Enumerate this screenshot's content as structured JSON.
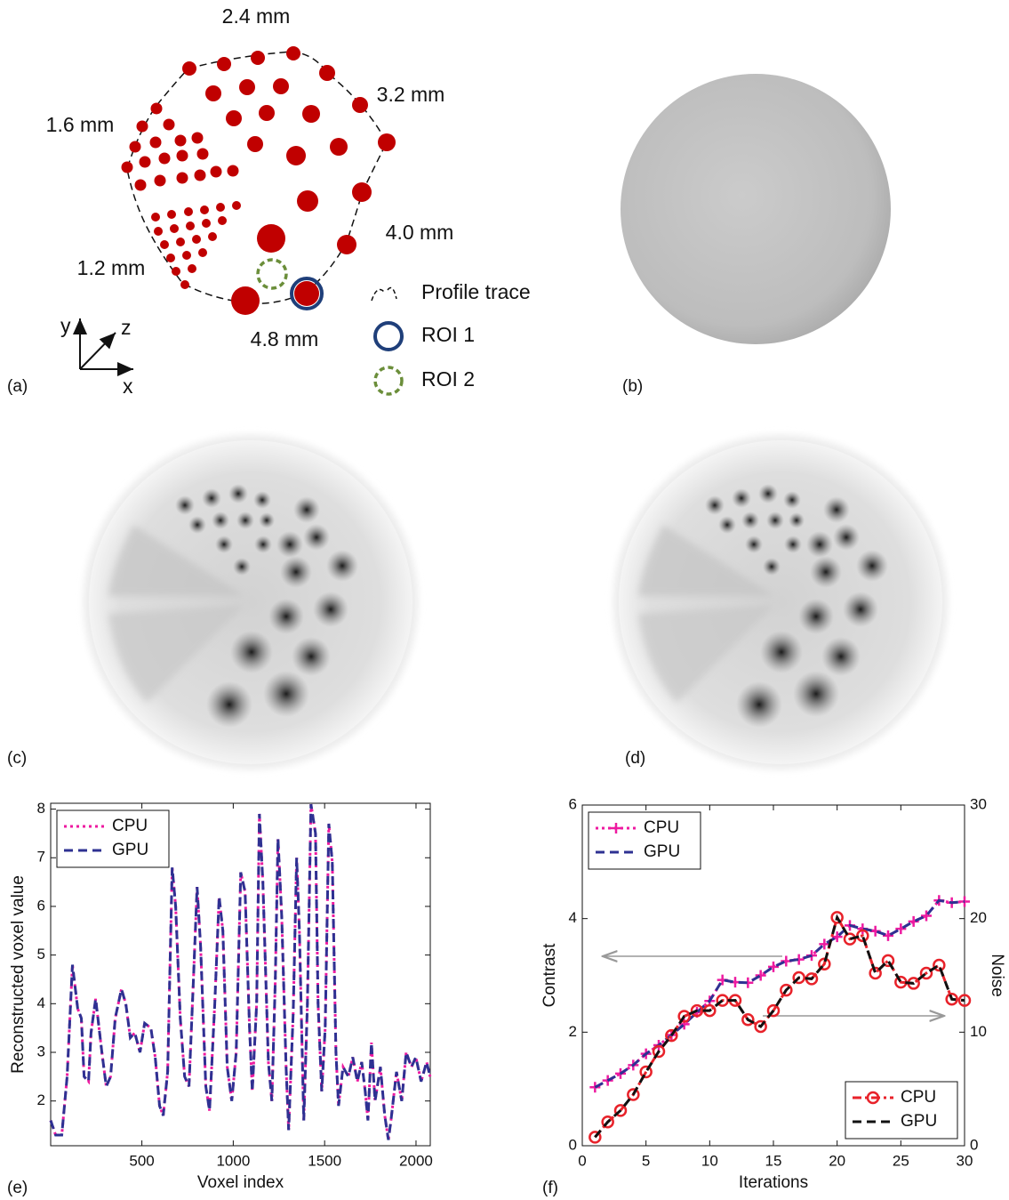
{
  "panel_labels": [
    "(a)",
    "(b)",
    "(c)",
    "(d)",
    "(e)",
    "(f)"
  ],
  "diagram": {
    "sizes": [
      "2.4 mm",
      "3.2 mm",
      "1.6 mm",
      "4.0 mm",
      "1.2 mm",
      "4.8 mm"
    ],
    "legend": [
      "Profile trace",
      "ROI 1",
      "ROI 2"
    ],
    "axes": [
      "y",
      "z",
      "x"
    ]
  },
  "chart_data": [
    {
      "type": "line",
      "xlabel": "Voxel index",
      "ylabel": "Reconstructed voxel value",
      "x": [
        1,
        28,
        62,
        91,
        120,
        149,
        169,
        184,
        208,
        222,
        247,
        281,
        305,
        329,
        354,
        388,
        412,
        437,
        461,
        490,
        515,
        549,
        573,
        597,
        617,
        641,
        666,
        685,
        710,
        734,
        758,
        782,
        802,
        821,
        850,
        870,
        899,
        923,
        943,
        967,
        992,
        1016,
        1041,
        1065,
        1089,
        1104,
        1128,
        1143,
        1162,
        1192,
        1211,
        1230,
        1245,
        1265,
        1289,
        1303,
        1328,
        1347,
        1362,
        1386,
        1406,
        1425,
        1450,
        1464,
        1484,
        1503,
        1523,
        1542,
        1562,
        1576,
        1601,
        1630,
        1654,
        1679,
        1703,
        1722,
        1737,
        1756,
        1776,
        1805,
        1829,
        1849,
        1863,
        1893,
        1922,
        1946,
        1975,
        1999,
        2028,
        2058,
        2077
      ],
      "series": [
        {
          "name": "CPU",
          "color": "#ee1aa0",
          "dash": "dotted",
          "values": [
            1.6,
            1.3,
            1.3,
            2.5,
            4.8,
            3.9,
            3.7,
            2.5,
            2.4,
            3.4,
            4.1,
            3.0,
            2.3,
            2.5,
            3.7,
            4.3,
            4.0,
            3.3,
            3.4,
            3.0,
            3.6,
            3.5,
            2.9,
            1.9,
            1.7,
            2.6,
            6.8,
            6.0,
            3.7,
            2.5,
            2.3,
            4.5,
            6.4,
            5.2,
            2.3,
            1.8,
            4.0,
            6.2,
            5.5,
            2.7,
            2.0,
            3.0,
            6.7,
            6.3,
            3.5,
            2.2,
            4.0,
            7.9,
            6.5,
            2.8,
            2.0,
            4.5,
            7.4,
            5.8,
            2.7,
            1.4,
            3.8,
            7.0,
            5.5,
            1.6,
            4.0,
            8.1,
            7.5,
            4.0,
            2.2,
            3.5,
            7.7,
            6.9,
            3.0,
            1.9,
            2.7,
            2.5,
            2.9,
            2.4,
            2.8,
            2.2,
            1.6,
            3.2,
            2.0,
            2.7,
            1.7,
            1.2,
            1.6,
            2.6,
            2.0,
            3.0,
            2.7,
            2.9,
            2.4,
            2.8,
            2.5
          ]
        },
        {
          "name": "GPU",
          "color": "#2e3192",
          "dash": "dashed",
          "values": [
            1.6,
            1.3,
            1.3,
            2.5,
            4.8,
            3.9,
            3.7,
            2.5,
            2.4,
            3.4,
            4.1,
            3.0,
            2.3,
            2.5,
            3.7,
            4.3,
            4.0,
            3.3,
            3.4,
            3.0,
            3.6,
            3.5,
            2.9,
            1.9,
            1.7,
            2.6,
            6.8,
            6.0,
            3.7,
            2.5,
            2.3,
            4.5,
            6.4,
            5.2,
            2.3,
            1.8,
            4.0,
            6.2,
            5.5,
            2.7,
            2.0,
            3.0,
            6.7,
            6.3,
            3.5,
            2.2,
            4.0,
            7.9,
            6.5,
            2.8,
            2.0,
            4.5,
            7.4,
            5.8,
            2.7,
            1.4,
            3.8,
            7.0,
            5.5,
            1.6,
            4.0,
            8.1,
            7.5,
            4.0,
            2.2,
            3.5,
            7.7,
            6.9,
            3.0,
            1.9,
            2.7,
            2.5,
            2.9,
            2.4,
            2.8,
            2.2,
            1.6,
            3.2,
            2.0,
            2.7,
            1.7,
            1.2,
            1.6,
            2.6,
            2.0,
            3.0,
            2.7,
            2.9,
            2.4,
            2.8,
            2.5
          ]
        }
      ],
      "legend": "upper left",
      "xlim": [
        1,
        2078
      ],
      "xticks": [
        500,
        1000,
        1500,
        2000
      ],
      "ylim": [
        1.08,
        8.12
      ],
      "yticks": [
        2,
        3,
        4,
        5,
        6,
        7,
        8
      ]
    },
    {
      "type": "line",
      "xlabel": "Iterations",
      "ylabel": "Contrast",
      "y2label": "Noise",
      "x": [
        1,
        2,
        3,
        4,
        5,
        6,
        7,
        8,
        9,
        10,
        11,
        12,
        13,
        14,
        15,
        16,
        17,
        18,
        19,
        20,
        21,
        22,
        23,
        24,
        25,
        26,
        27,
        28,
        29,
        30
      ],
      "series": [
        {
          "name": "CPU",
          "color": "#ee1aa0",
          "dash": "dotted",
          "marker": "+",
          "legend": "upper left",
          "values": [
            1.03,
            1.15,
            1.27,
            1.42,
            1.62,
            1.77,
            1.95,
            2.14,
            2.35,
            2.55,
            2.92,
            2.88,
            2.87,
            3.0,
            3.15,
            3.25,
            3.28,
            3.35,
            3.55,
            3.68,
            3.88,
            3.82,
            3.78,
            3.7,
            3.82,
            3.95,
            4.05,
            4.32,
            4.28,
            4.3
          ]
        },
        {
          "name": "GPU",
          "color": "#2e3192",
          "dash": "dashed",
          "legend": "upper left",
          "values": [
            1.03,
            1.15,
            1.27,
            1.42,
            1.62,
            1.77,
            1.95,
            2.14,
            2.35,
            2.55,
            2.92,
            2.88,
            2.87,
            3.0,
            3.15,
            3.25,
            3.28,
            3.35,
            3.55,
            3.68,
            3.88,
            3.82,
            3.78,
            3.7,
            3.82,
            3.95,
            4.05,
            4.32,
            4.28,
            4.3
          ]
        },
        {
          "name": "CPU",
          "color": "#e8222a",
          "dash": "dashdot",
          "marker": "o",
          "axis": "y2",
          "legend": "lower right",
          "values": [
            0.75,
            2.1,
            3.1,
            4.5,
            6.5,
            8.3,
            9.7,
            11.4,
            11.9,
            11.9,
            12.8,
            12.8,
            11.1,
            10.5,
            11.9,
            13.7,
            14.8,
            14.7,
            16.0,
            20.1,
            18.2,
            18.5,
            15.2,
            16.3,
            14.4,
            14.3,
            15.2,
            15.9,
            12.9,
            12.8
          ]
        },
        {
          "name": "GPU",
          "color": "#111111",
          "dash": "dashed",
          "axis": "y2",
          "legend": "lower right",
          "values": [
            0.75,
            2.1,
            3.1,
            4.5,
            6.5,
            8.3,
            9.7,
            11.4,
            11.9,
            11.9,
            12.8,
            12.8,
            11.1,
            10.5,
            11.9,
            13.7,
            14.8,
            14.7,
            16.0,
            20.1,
            18.2,
            18.5,
            15.2,
            16.3,
            14.4,
            14.3,
            15.2,
            15.9,
            12.9,
            12.8
          ]
        }
      ],
      "xlim": [
        0,
        30
      ],
      "xticks": [
        0,
        5,
        10,
        15,
        20,
        25,
        30
      ],
      "ylim": [
        0,
        6
      ],
      "yticks": [
        0,
        2,
        4,
        6
      ],
      "y2lim": [
        0,
        30
      ],
      "y2ticks": [
        0,
        10,
        20,
        30
      ]
    }
  ]
}
